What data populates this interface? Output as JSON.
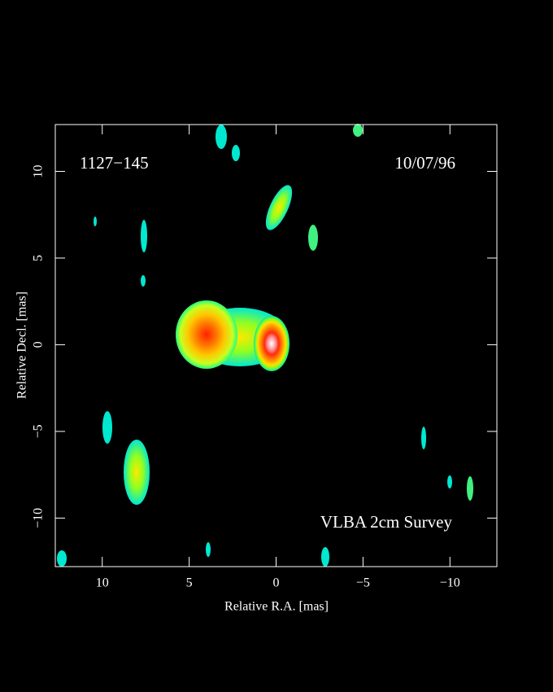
{
  "chart_data": {
    "type": "image",
    "source_label": "1127−145",
    "date_label": "10/07/96",
    "survey_label": "VLBA 2cm Survey",
    "x_label": "Relative R.A. [mas]",
    "y_label": "Relative Decl. [mas]",
    "xlim": [
      12.7,
      -12.7
    ],
    "ylim": [
      -12.8,
      12.7
    ],
    "xticks": [
      10,
      5,
      0,
      {
        "value": -5,
        "label": "−5"
      },
      {
        "value": -10,
        "label": "−10"
      }
    ],
    "yticks": [
      {
        "value": -10,
        "label": "−10"
      },
      {
        "value": -5,
        "label": "−5"
      },
      0,
      5,
      10
    ]
  }
}
